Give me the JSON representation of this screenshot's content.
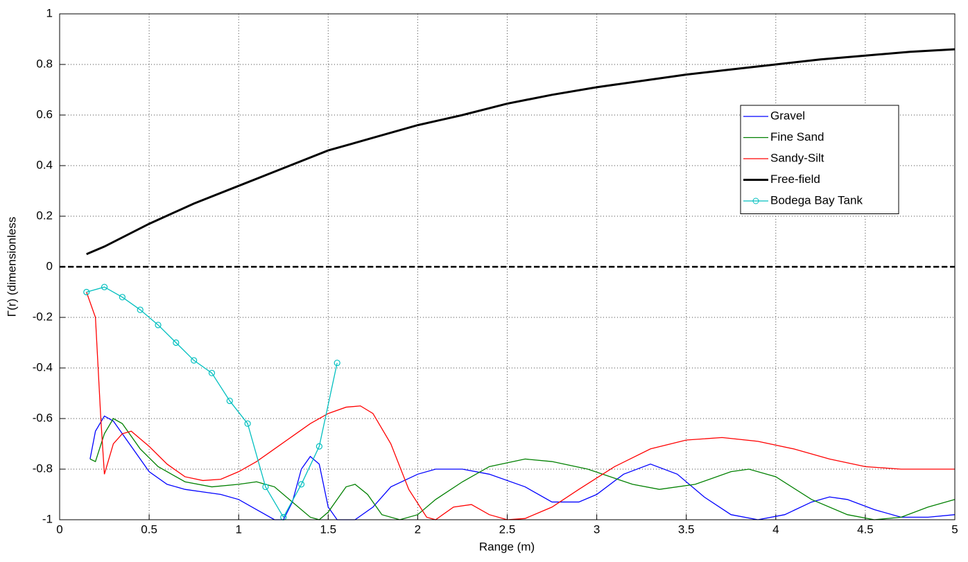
{
  "chart_data": {
    "type": "line",
    "xlabel": "Range (m)",
    "ylabel": "Γ(r) (dimensionless",
    "xlim": [
      0,
      5
    ],
    "ylim": [
      -1,
      1
    ],
    "xticks": [
      0,
      0.5,
      1,
      1.5,
      2,
      2.5,
      3,
      3.5,
      4,
      4.5,
      5
    ],
    "yticks": [
      -1,
      -0.8,
      -0.6,
      -0.4,
      -0.2,
      0,
      0.2,
      0.4,
      0.6,
      0.8,
      1
    ],
    "grid": true,
    "legend": "upper right",
    "hline": 0,
    "series": [
      {
        "name": "Gravel",
        "color": "#0000ff",
        "x": [
          0.17,
          0.2,
          0.25,
          0.3,
          0.35,
          0.4,
          0.5,
          0.6,
          0.7,
          0.8,
          0.9,
          1.0,
          1.1,
          1.2,
          1.25,
          1.3,
          1.35,
          1.4,
          1.45,
          1.5,
          1.55,
          1.65,
          1.75,
          1.85,
          2.0,
          2.1,
          2.25,
          2.4,
          2.6,
          2.75,
          2.9,
          3.0,
          3.15,
          3.3,
          3.45,
          3.6,
          3.75,
          3.9,
          4.05,
          4.2,
          4.3,
          4.4,
          4.55,
          4.7,
          4.85,
          5
        ],
        "values": [
          -0.76,
          -0.65,
          -0.59,
          -0.61,
          -0.66,
          -0.71,
          -0.81,
          -0.86,
          -0.88,
          -0.89,
          -0.9,
          -0.92,
          -0.96,
          -1.0,
          -1.0,
          -0.93,
          -0.8,
          -0.75,
          -0.78,
          -0.95,
          -1.0,
          -1.0,
          -0.95,
          -0.87,
          -0.82,
          -0.8,
          -0.8,
          -0.82,
          -0.87,
          -0.93,
          -0.93,
          -0.9,
          -0.82,
          -0.78,
          -0.82,
          -0.91,
          -0.98,
          -1.0,
          -0.98,
          -0.93,
          -0.91,
          -0.92,
          -0.96,
          -0.99,
          -0.99,
          -0.98
        ]
      },
      {
        "name": "Fine Sand",
        "color": "#008000",
        "x": [
          0.17,
          0.2,
          0.25,
          0.3,
          0.35,
          0.45,
          0.55,
          0.7,
          0.85,
          1.0,
          1.1,
          1.2,
          1.3,
          1.4,
          1.45,
          1.5,
          1.6,
          1.65,
          1.72,
          1.8,
          1.9,
          2.0,
          2.1,
          2.25,
          2.4,
          2.6,
          2.75,
          2.95,
          3.2,
          3.35,
          3.55,
          3.75,
          3.85,
          4.0,
          4.2,
          4.4,
          4.55,
          4.7,
          4.85,
          5
        ],
        "values": [
          -0.76,
          -0.77,
          -0.66,
          -0.6,
          -0.62,
          -0.72,
          -0.79,
          -0.85,
          -0.87,
          -0.86,
          -0.85,
          -0.87,
          -0.93,
          -0.99,
          -1.0,
          -0.97,
          -0.87,
          -0.86,
          -0.9,
          -0.98,
          -1.0,
          -0.98,
          -0.92,
          -0.85,
          -0.79,
          -0.76,
          -0.77,
          -0.8,
          -0.86,
          -0.88,
          -0.86,
          -0.81,
          -0.8,
          -0.83,
          -0.92,
          -0.98,
          -1.0,
          -0.99,
          -0.95,
          -0.92
        ]
      },
      {
        "name": "Sandy-Silt",
        "color": "#ff0000",
        "x": [
          0.15,
          0.2,
          0.23,
          0.25,
          0.3,
          0.35,
          0.4,
          0.5,
          0.6,
          0.7,
          0.8,
          0.9,
          1.0,
          1.1,
          1.2,
          1.3,
          1.4,
          1.5,
          1.6,
          1.68,
          1.75,
          1.85,
          1.95,
          2.05,
          2.1,
          2.2,
          2.3,
          2.4,
          2.5,
          2.6,
          2.75,
          2.9,
          3.1,
          3.3,
          3.5,
          3.7,
          3.9,
          4.1,
          4.3,
          4.5,
          4.7,
          5
        ],
        "values": [
          -0.1,
          -0.2,
          -0.6,
          -0.82,
          -0.7,
          -0.66,
          -0.65,
          -0.71,
          -0.78,
          -0.83,
          -0.845,
          -0.84,
          -0.81,
          -0.77,
          -0.72,
          -0.67,
          -0.62,
          -0.58,
          -0.555,
          -0.55,
          -0.58,
          -0.7,
          -0.88,
          -0.99,
          -1.0,
          -0.95,
          -0.94,
          -0.98,
          -1.0,
          -0.995,
          -0.95,
          -0.88,
          -0.79,
          -0.72,
          -0.685,
          -0.675,
          -0.69,
          -0.72,
          -0.76,
          -0.79,
          -0.8,
          -0.8
        ]
      },
      {
        "name": "Free-field",
        "color": "#000000",
        "x": [
          0.15,
          0.25,
          0.5,
          0.75,
          1.0,
          1.25,
          1.5,
          1.75,
          2.0,
          2.25,
          2.5,
          2.75,
          3.0,
          3.25,
          3.5,
          3.75,
          4.0,
          4.25,
          4.5,
          4.75,
          5
        ],
        "values": [
          0.05,
          0.08,
          0.17,
          0.25,
          0.32,
          0.39,
          0.46,
          0.51,
          0.56,
          0.6,
          0.645,
          0.68,
          0.71,
          0.735,
          0.76,
          0.78,
          0.8,
          0.82,
          0.835,
          0.85,
          0.86
        ]
      },
      {
        "name": "Bodega Bay Tank",
        "color": "#00bfbf",
        "marker": "o",
        "x": [
          0.15,
          0.25,
          0.35,
          0.45,
          0.55,
          0.65,
          0.75,
          0.85,
          0.95,
          1.05,
          1.15,
          1.25,
          1.35,
          1.45,
          1.55
        ],
        "values": [
          -0.1,
          -0.08,
          -0.12,
          -0.17,
          -0.23,
          -0.3,
          -0.37,
          -0.42,
          -0.53,
          -0.62,
          -0.87,
          -0.99,
          -0.86,
          -0.71,
          -0.38
        ]
      }
    ]
  }
}
